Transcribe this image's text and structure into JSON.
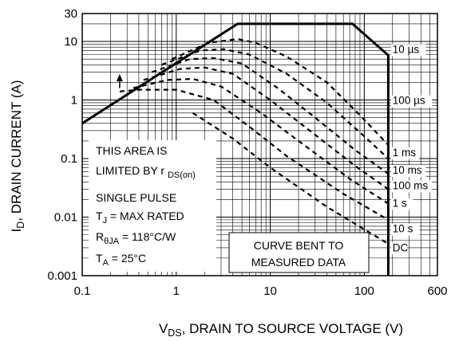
{
  "chart_data": {
    "type": "line",
    "title": "",
    "xlabel_main": "V",
    "xlabel_sub": "DS",
    "xlabel_rest": ", DRAIN TO SOURCE VOLTAGE (V)",
    "ylabel_main": "I",
    "ylabel_sub": "D",
    "ylabel_rest": ", DRAIN CURRENT (A)",
    "xscale": "log",
    "yscale": "log",
    "xlim": [
      0.1,
      600
    ],
    "ylim": [
      0.001,
      30
    ],
    "grid": true,
    "xticks": [
      {
        "value": 0.1,
        "label": "0.1"
      },
      {
        "value": 1,
        "label": "1"
      },
      {
        "value": 10,
        "label": "10"
      },
      {
        "value": 100,
        "label": "100"
      },
      {
        "value": 600,
        "label": "600"
      }
    ],
    "yticks": [
      {
        "value": 30,
        "label": "30"
      },
      {
        "value": 10,
        "label": "10"
      },
      {
        "value": 1,
        "label": "1"
      },
      {
        "value": 0.1,
        "label": "0.1"
      },
      {
        "value": 0.01,
        "label": "0.01"
      },
      {
        "value": 0.001,
        "label": "0.001"
      }
    ],
    "boundary": {
      "description_lines": [
        "THIS AREA IS",
        "LIMITED BY r"
      ],
      "description_sub": "DS(on)",
      "points": [
        [
          0.1,
          0.4
        ],
        [
          4.5,
          20
        ],
        [
          75,
          20
        ],
        [
          180,
          5.8
        ],
        [
          180,
          0.001
        ]
      ]
    },
    "curves": [
      {
        "label": "10 µs",
        "label_value": 6.4,
        "points": [
          [
            0.9,
            5.0
          ],
          [
            2.2,
            9.5
          ],
          [
            4.5,
            11
          ],
          [
            7,
            9.5
          ],
          [
            15,
            5.5
          ],
          [
            40,
            2.0
          ],
          [
            90,
            0.55
          ],
          [
            180,
            0.17
          ]
        ]
      },
      {
        "label": "100 µs",
        "label_value": 0.85,
        "points": [
          [
            0.7,
            4.0
          ],
          [
            1.8,
            7.0
          ],
          [
            3.2,
            7.4
          ],
          [
            6,
            6.0
          ],
          [
            15,
            2.8
          ],
          [
            40,
            0.9
          ],
          [
            100,
            0.24
          ],
          [
            180,
            0.1
          ]
        ]
      },
      {
        "label": "1 ms",
        "label_value": 0.11,
        "points": [
          [
            0.55,
            3.0
          ],
          [
            1.4,
            5.0
          ],
          [
            2.5,
            5.2
          ],
          [
            5,
            4.2
          ],
          [
            12,
            1.6
          ],
          [
            30,
            0.5
          ],
          [
            80,
            0.14
          ],
          [
            180,
            0.055
          ]
        ]
      },
      {
        "label": "10 ms",
        "label_value": 0.055,
        "points": [
          [
            0.45,
            2.2
          ],
          [
            1.1,
            3.4
          ],
          [
            2.0,
            3.6
          ],
          [
            4,
            2.8
          ],
          [
            10,
            1.0
          ],
          [
            25,
            0.32
          ],
          [
            80,
            0.075
          ],
          [
            180,
            0.03
          ]
        ]
      },
      {
        "label": "100 ms",
        "label_value": 0.03,
        "points": [
          [
            0.35,
            1.6
          ],
          [
            0.8,
            2.2
          ],
          [
            1.5,
            2.3
          ],
          [
            3,
            1.7
          ],
          [
            8,
            0.6
          ],
          [
            20,
            0.2
          ],
          [
            70,
            0.045
          ],
          [
            180,
            0.017
          ]
        ]
      },
      {
        "label": "1 s",
        "label_value": 0.015,
        "points": [
          [
            0.25,
            1.4
          ],
          [
            0.4,
            1.5
          ],
          [
            1.0,
            1.5
          ],
          [
            2.5,
            1.0
          ],
          [
            6,
            0.35
          ],
          [
            15,
            0.11
          ],
          [
            60,
            0.025
          ],
          [
            180,
            0.009
          ]
        ]
      },
      {
        "label": "10 s",
        "label_value": 0.0055,
        "points": [
          [
            1.5,
            0.6
          ],
          [
            4,
            0.22
          ],
          [
            10,
            0.07
          ],
          [
            40,
            0.015
          ],
          [
            180,
            0.0035
          ]
        ]
      },
      {
        "label": "DC",
        "label_value": 0.0026,
        "points": []
      }
    ],
    "label_x_value": 200,
    "arrow": {
      "x": 0.25,
      "y_from": 1.6,
      "y_to": 2.6
    },
    "notes": {
      "pulse": "SINGLE PULSE",
      "tj_main": "T",
      "tj_sub": "J",
      "tj_rest": " = MAX RATED",
      "rth_main": "R",
      "rth_sub": "θJA",
      "rth_rest": " = 118°C/W",
      "ta_main": "T",
      "ta_sub": "A",
      "ta_rest": " = 25°C",
      "measured_line1": "CURVE BENT TO",
      "measured_line2": "MEASURED DATA"
    },
    "colors": {
      "line": "#000000",
      "background": "#ffffff"
    }
  }
}
